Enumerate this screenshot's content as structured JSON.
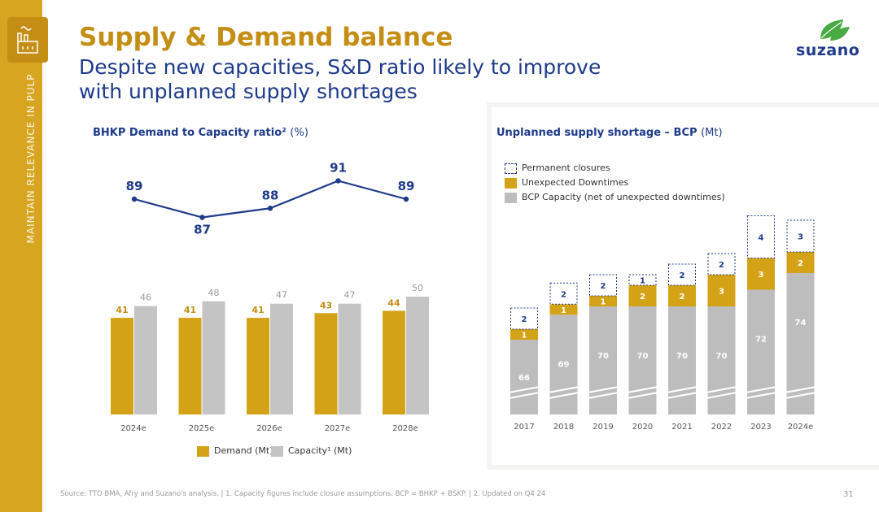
{
  "sidebar": {
    "text": "MAINTAIN RELEVANCE IN PULP"
  },
  "header": {
    "title": "Supply & Demand balance",
    "subtitle": "Despite new capacities, S&D ratio likely to improve with unplanned supply shortages"
  },
  "logo": {
    "text": "suzano"
  },
  "colors": {
    "gold": "#d4a217",
    "gray": "#c4c4c4",
    "navy": "#1e3a8a",
    "sidebar": "#d7a520"
  },
  "chart_data": [
    {
      "type": "line",
      "title": "BHKP Demand to Capacity ratio²",
      "unit": "(%)",
      "categories": [
        "2024e",
        "2025e",
        "2026e",
        "2027e",
        "2028e"
      ],
      "values": [
        89,
        87,
        88,
        91,
        89
      ],
      "ylim": [
        85,
        93
      ]
    },
    {
      "type": "bar",
      "categories": [
        "2024e",
        "2025e",
        "2026e",
        "2027e",
        "2028e"
      ],
      "series": [
        {
          "name": "Demand (Mt)",
          "values": [
            41,
            41,
            41,
            43,
            44
          ]
        },
        {
          "name": "Capacity¹ (Mt)",
          "values": [
            46,
            48,
            47,
            47,
            50
          ]
        }
      ],
      "ylim": [
        0,
        50
      ]
    },
    {
      "type": "bar",
      "stacked": true,
      "title": "Unplanned  supply shortage – BCP",
      "unit": "(Mt)",
      "categories": [
        "2017",
        "2018",
        "2019",
        "2020",
        "2021",
        "2022",
        "2023",
        "2024e"
      ],
      "series": [
        {
          "name": "BCP Capacity (net of unexpected downtimes)",
          "values": [
            66,
            69,
            70,
            70,
            70,
            70,
            72,
            74
          ]
        },
        {
          "name": "Unexpected Downtimes",
          "values": [
            1,
            1,
            1,
            2,
            2,
            3,
            3,
            2
          ]
        },
        {
          "name": "Permanent closures",
          "values": [
            2,
            2,
            2,
            1,
            2,
            2,
            4,
            3
          ]
        }
      ],
      "axis_break": true
    }
  ],
  "footer": {
    "source": "Source: TTO BMA, Afry and Suzano's analysis. | 1. Capacity figures include closure assumptions. BCP = BHKP + BSKP. | 2. Updated on Q4 24",
    "page": "31"
  }
}
